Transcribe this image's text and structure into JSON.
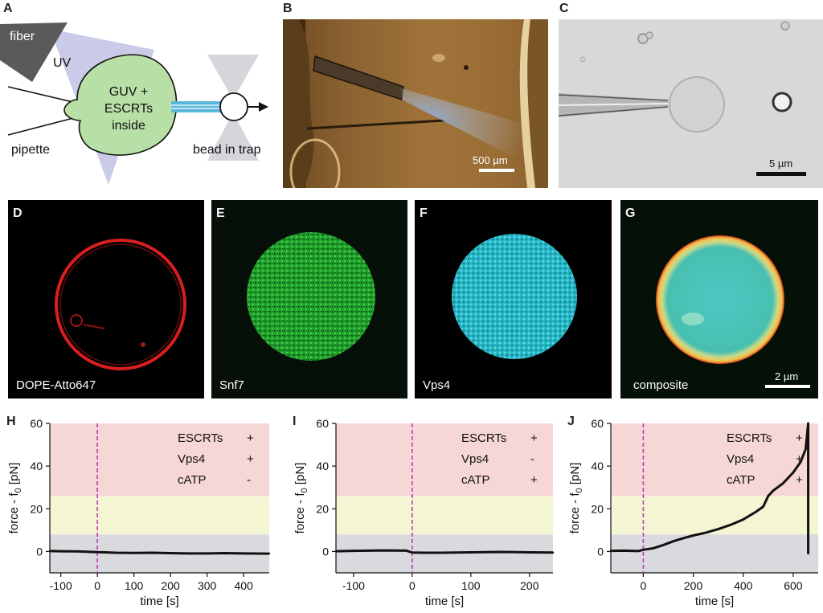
{
  "panels": {
    "A": {
      "letter": "A",
      "labels": {
        "fiber": "fiber",
        "uv": "UV",
        "guv_line1": "GUV +",
        "guv_line2": "ESCRTs",
        "guv_line3": "inside",
        "pipette": "pipette",
        "bead": "bead in trap"
      }
    },
    "B": {
      "letter": "B",
      "scale_bar": "500 µm"
    },
    "C": {
      "letter": "C",
      "scale_bar": "5 µm"
    },
    "D": {
      "letter": "D",
      "label": "DOPE-Atto647"
    },
    "E": {
      "letter": "E",
      "label": "Snf7"
    },
    "F": {
      "letter": "F",
      "label": "Vps4"
    },
    "G": {
      "letter": "G",
      "label": "composite",
      "scale_bar": "2 µm"
    }
  },
  "colors": {
    "guv_fill": "#b8e0a6",
    "uv_cone": "#c9cbe8",
    "fiber": "#5a5a5a",
    "tether": "#5bb6dc",
    "trap": "#d5d6db",
    "zone_red": "#f6d7d5",
    "zone_yellow": "#f4f5d2",
    "zone_gray": "#d9dadd",
    "time_zero_line": "#c03ab8",
    "trace": "#111111"
  },
  "chart_data": [
    {
      "panel": "H",
      "type": "line",
      "xlabel": "time [s]",
      "ylabel": "force - f",
      "ylabel_sub": "0",
      "ylabel_unit": " [pN]",
      "xlim": [
        -130,
        470
      ],
      "ylim": [
        -10,
        60
      ],
      "xticks": [
        -100,
        0,
        100,
        200,
        300,
        400
      ],
      "xtick_labels": [
        "-100",
        "0",
        "100",
        "200",
        "300",
        "400"
      ],
      "yticks": [
        0,
        20,
        40,
        60
      ],
      "ytick_labels": [
        "0",
        "20",
        "40",
        "60"
      ],
      "zones": [
        {
          "from": -10,
          "to": 8,
          "color": "zone_gray"
        },
        {
          "from": 8,
          "to": 26,
          "color": "zone_yellow"
        },
        {
          "from": 26,
          "to": 60,
          "color": "zone_red"
        }
      ],
      "vline_x": 0,
      "legend": [
        {
          "name": "ESCRTs",
          "sign": "+"
        },
        {
          "name": "Vps4",
          "sign": "+"
        },
        {
          "name": "cATP",
          "sign": "-"
        }
      ],
      "series": [
        {
          "x": [
            -130,
            -100,
            -50,
            0,
            50,
            100,
            150,
            200,
            250,
            300,
            350,
            400,
            470
          ],
          "y": [
            0.2,
            0.1,
            0.0,
            -0.3,
            -0.6,
            -0.7,
            -0.6,
            -0.8,
            -0.9,
            -0.9,
            -0.8,
            -0.9,
            -1.0
          ]
        }
      ]
    },
    {
      "panel": "I",
      "type": "line",
      "xlabel": "time [s]",
      "ylabel": "force - f",
      "ylabel_sub": "0",
      "ylabel_unit": " [pN]",
      "xlim": [
        -130,
        240
      ],
      "ylim": [
        -10,
        60
      ],
      "xticks": [
        -100,
        0,
        100,
        200
      ],
      "xtick_labels": [
        "-100",
        "0",
        "100",
        "200"
      ],
      "yticks": [
        0,
        20,
        40,
        60
      ],
      "ytick_labels": [
        "0",
        "20",
        "40",
        "60"
      ],
      "zones": [
        {
          "from": -10,
          "to": 8,
          "color": "zone_gray"
        },
        {
          "from": 8,
          "to": 26,
          "color": "zone_yellow"
        },
        {
          "from": 26,
          "to": 60,
          "color": "zone_red"
        }
      ],
      "vline_x": 0,
      "legend": [
        {
          "name": "ESCRTs",
          "sign": "+"
        },
        {
          "name": "Vps4",
          "sign": "-"
        },
        {
          "name": "cATP",
          "sign": "+"
        }
      ],
      "series": [
        {
          "x": [
            -130,
            -100,
            -50,
            -10,
            0,
            20,
            50,
            100,
            150,
            200,
            240
          ],
          "y": [
            0.1,
            0.3,
            0.5,
            0.4,
            -0.5,
            -0.6,
            -0.6,
            -0.4,
            -0.2,
            -0.4,
            -0.5
          ]
        }
      ]
    },
    {
      "panel": "J",
      "type": "line",
      "xlabel": "time [s]",
      "ylabel": "force - f",
      "ylabel_sub": "0",
      "ylabel_unit": " [pN]",
      "xlim": [
        -130,
        700
      ],
      "ylim": [
        -10,
        60
      ],
      "xticks": [
        0,
        200,
        400,
        600
      ],
      "xtick_labels": [
        "0",
        "200",
        "400",
        "600"
      ],
      "yticks": [
        0,
        20,
        40,
        60
      ],
      "ytick_labels": [
        "0",
        "20",
        "40",
        "60"
      ],
      "zones": [
        {
          "from": -10,
          "to": 8,
          "color": "zone_gray"
        },
        {
          "from": 8,
          "to": 26,
          "color": "zone_yellow"
        },
        {
          "from": 26,
          "to": 60,
          "color": "zone_red"
        }
      ],
      "vline_x": 0,
      "legend": [
        {
          "name": "ESCRTs",
          "sign": "+"
        },
        {
          "name": "Vps4",
          "sign": "+"
        },
        {
          "name": "cATP",
          "sign": "+"
        }
      ],
      "series": [
        {
          "x": [
            -130,
            -80,
            -20,
            0,
            40,
            80,
            120,
            160,
            200,
            250,
            300,
            350,
            400,
            450,
            480,
            500,
            520,
            560,
            600,
            630,
            650,
            660,
            660
          ],
          "y": [
            0.3,
            0.4,
            0.2,
            0.8,
            1.5,
            3.0,
            4.8,
            6.2,
            7.5,
            8.8,
            10.5,
            12.5,
            15.0,
            18.5,
            21.0,
            26.0,
            28.5,
            32.0,
            37.0,
            42.0,
            48.0,
            60.0,
            -1.0
          ]
        }
      ]
    }
  ]
}
